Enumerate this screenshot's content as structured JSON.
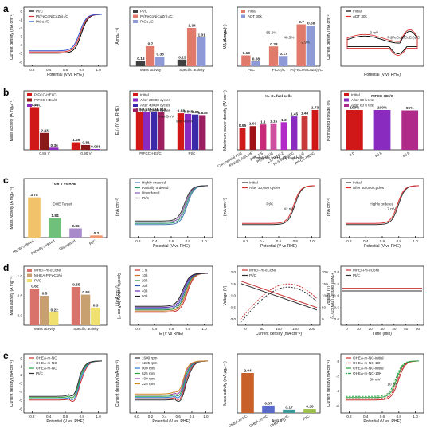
{
  "row_labels": [
    "a",
    "b",
    "c",
    "d",
    "e"
  ],
  "chart_data": [
    {
      "id": "a1",
      "row": "a",
      "type": "line",
      "xlabel": "Potential (V vs RHE)",
      "ylabel": "Current density (mA cm⁻²)",
      "xticks": [
        "0.2",
        "0.4",
        "0.6",
        "0.8",
        "1.0"
      ],
      "yticks": [
        "-6",
        "-5",
        "-4",
        "-3",
        "-2",
        "-1",
        "0"
      ],
      "series": [
        {
          "name": "Pt/C",
          "color": "#000000",
          "y_plateau": -5.4,
          "half_wave": 0.86
        },
        {
          "name": "Pt(FeCoNiCuZn)₃/C",
          "color": "#d93030",
          "y_plateau": -5.7,
          "half_wave": 0.9
        },
        {
          "name": "PtCu₃/C",
          "color": "#3050d0",
          "y_plateau": -5.5,
          "half_wave": 0.88
        }
      ]
    },
    {
      "id": "a2",
      "row": "a",
      "type": "bar",
      "categories": [
        "Mass activity",
        "Specific activity"
      ],
      "ylabel_left": "(A mgₚₜ⁻¹)",
      "ylabel_right": "(mA cm⁻²)",
      "series": [
        {
          "name": "Pt/C",
          "color": "#404040",
          "values": [
            0.18,
            0.23
          ]
        },
        {
          "name": "Pt(FeCoNiCuZn)₃/C",
          "color": "#e07a6a",
          "values": [
            0.7,
            1.34
          ]
        },
        {
          "name": "PtCu₃/C",
          "color": "#8e9ad8",
          "values": [
            0.33,
            1.01
          ]
        }
      ],
      "ylim_left": [
        0,
        1.0
      ],
      "ylim_right": [
        0,
        1.5
      ]
    },
    {
      "id": "a3",
      "row": "a",
      "type": "bar",
      "categories": [
        "Pt/C",
        "PtCu₃/C",
        "Pt(FeCoNiCuZn)₃/C"
      ],
      "ylabel": "MA (A mgₚₜ⁻¹)",
      "annotations": [
        "55.6%",
        "48.5%",
        "2.9%"
      ],
      "series": [
        {
          "name": "Initial",
          "color": "#e07a6a",
          "values": [
            0.18,
            0.33,
            0.7
          ]
        },
        {
          "name": "ADT 30k",
          "color": "#8e9ad8",
          "values": [
            0.08,
            0.17,
            0.68
          ]
        }
      ],
      "ylim": [
        0,
        0.8
      ]
    },
    {
      "id": "a4",
      "row": "a",
      "type": "line",
      "xlabel": "Potential (V vs RHE)",
      "ylabel": "Current density (mA cm⁻²)",
      "annotations": [
        "3 mV",
        "Pt(FeCoNiCuZn)₃/C"
      ],
      "series": [
        {
          "name": "Initial",
          "color": "#000000"
        },
        {
          "name": "ADT 30k",
          "color": "#d93030"
        }
      ]
    },
    {
      "id": "b1",
      "row": "b",
      "type": "bar",
      "categories": [
        "0.85 V",
        "0.90 V"
      ],
      "ylabel": "Mass activity (A mgₚₜ⁻¹)",
      "xlabel": "",
      "series": [
        {
          "name": "PtFCC-HEI/C",
          "color": "#d01818",
          "values": [
            7.14,
            1.26
          ]
        },
        {
          "name": "PtFCC-HEA/C",
          "color": "#8a1a1a",
          "values": [
            2.83,
            0.81
          ]
        },
        {
          "name": "Pt/C",
          "color": "#8a2bbf",
          "values": [
            0.36,
            0.098
          ]
        }
      ],
      "ylim": [
        0,
        8
      ]
    },
    {
      "id": "b2",
      "row": "b",
      "type": "bar",
      "categories": [
        "PtFCC-HEI/C",
        "Pt/C"
      ],
      "ylabel": "E₁/₂ (V vs. RHE)",
      "annotations": [
        "loss 5mV",
        "loss 45mV"
      ],
      "series": [
        {
          "name": "Initial",
          "color": "#d01818",
          "values": [
            0.92,
            0.88
          ]
        },
        {
          "name": "After 20000 cycles",
          "color": "#8a2bbf",
          "values": [
            0.918,
            0.865
          ]
        },
        {
          "name": "After 40000 cycles",
          "color": "#3a2aa8",
          "values": [
            0.916,
            0.85
          ]
        },
        {
          "name": "After 60000 cycles",
          "color": "#9b1e5e",
          "values": [
            0.915,
            0.835
          ]
        }
      ]
    },
    {
      "id": "b3",
      "row": "b",
      "type": "bar",
      "title": "H₂-O₂ fuel cells",
      "xlabel": "Catalysts for H₂-O₂ fuel cells",
      "ylabel": "Maximum power density (W cm⁻²)",
      "categories": [
        "Commercial Pt/C",
        "PtNi@C/Ni/CNF",
        "PtNi_NS",
        "Pt₃Ni NC/C",
        "L1₂-PtFF-2",
        "Pt-S-Ni@NPC",
        "Pt₃Co-C",
        "PtFCC-HEI/C"
      ],
      "values": [
        0.95,
        1.03,
        1.1,
        1.15,
        1.2,
        1.45,
        1.48,
        1.73
      ],
      "colors": [
        "#d01818",
        "#a01418",
        "#c82a7a",
        "#d050a0",
        "#b22ac8",
        "#8a2bbf",
        "#c83a3a",
        "#d01818"
      ]
    },
    {
      "id": "b4",
      "row": "b",
      "type": "bar",
      "title": "PtFCC-HEI/C",
      "ylabel": "Normalized Voltage (%)",
      "categories": [
        "0 h",
        "60 h",
        "80 h"
      ],
      "values": [
        100,
        100,
        99
      ],
      "value_labels": [
        "100%",
        "100%",
        "99%"
      ],
      "legend": [
        "Initial",
        "After 60 h test",
        "After 80 h test"
      ],
      "colors": [
        "#d01818",
        "#8a2bbf",
        "#b02a8a"
      ]
    },
    {
      "id": "c1",
      "row": "c",
      "type": "bar",
      "title": "0.9 V vs RHE",
      "ylabel": "Mass Activity (A mgₚₜ⁻¹)",
      "categories": [
        "Highly ordered",
        "Partially ordered",
        "Disordered",
        "Pt/C"
      ],
      "values": [
        3.78,
        1.84,
        0.86,
        0.2
      ],
      "colors": [
        "#f2c26a",
        "#6fc07a",
        "#a88acb",
        "#f09870"
      ],
      "annotations": [
        "DOE Target"
      ],
      "ylim": [
        0,
        4.5
      ]
    },
    {
      "id": "c2",
      "row": "c",
      "type": "line",
      "xlabel": "Potential (V vs RHE)",
      "ylabel": "j (mA cm⁻²)",
      "xticks": [
        "0.2",
        "0.4",
        "0.6",
        "0.8",
        "1.0"
      ],
      "series": [
        {
          "name": "Highly ordered",
          "color": "#4a7ab8"
        },
        {
          "name": "Partially ordered",
          "color": "#2a9a6a"
        },
        {
          "name": "Disordered",
          "color": "#8a5ab0"
        },
        {
          "name": "Pt/C",
          "color": "#333333"
        }
      ]
    },
    {
      "id": "c3",
      "row": "c",
      "type": "line",
      "xlabel": "Potential (V vs RHE)",
      "ylabel": "j (mA cm⁻²)",
      "xticks": [
        "0.2",
        "0.4",
        "0.6",
        "0.8",
        "1.0"
      ],
      "annotations": [
        "Pt/C",
        "42 mV"
      ],
      "series": [
        {
          "name": "Initial",
          "color": "#333333"
        },
        {
          "name": "After 30,000 cycles",
          "color": "#d93030"
        }
      ]
    },
    {
      "id": "c4",
      "row": "c",
      "type": "line",
      "xlabel": "Potential (V vs RHE)",
      "ylabel": "j (mA cm⁻²)",
      "xticks": [
        "0.2",
        "0.4",
        "0.6",
        "0.8",
        "1.0"
      ],
      "annotations": [
        "Highly ordered",
        "7 mV"
      ],
      "series": [
        {
          "name": "Initial",
          "color": "#333333"
        },
        {
          "name": "After 30,000 cycles",
          "color": "#d93030"
        }
      ]
    },
    {
      "id": "d1",
      "row": "d",
      "type": "bar",
      "categories": [
        "Mass activity",
        "Specific activity"
      ],
      "ylabel_left": "Mass activity (A mg⁻¹)",
      "ylabel_right": "Specific activity (mA cm⁻²)",
      "series": [
        {
          "name": "MHEI-PtFeCoNi",
          "color": "#d9726a",
          "values": [
            0.62,
            0.65
          ]
        },
        {
          "name": "MHEA-PtFeCoNi",
          "color": "#c8a070",
          "values": [
            0.5,
            0.52
          ]
        },
        {
          "name": "Pt/C",
          "color": "#f0e070",
          "values": [
            0.22,
            0.3
          ]
        }
      ],
      "yticks_left": [
        "0.0",
        "0.5",
        "1.0"
      ]
    },
    {
      "id": "d2",
      "row": "d",
      "type": "line",
      "xlabel": "E (V vs RHE)",
      "ylabel": "j (mA cm⁻²)",
      "xticks": [
        "0.2",
        "0.4",
        "0.6",
        "0.8",
        "1.0"
      ],
      "series": [
        {
          "name": "1 st",
          "color": "#c83030"
        },
        {
          "name": "10k",
          "color": "#d06a2a"
        },
        {
          "name": "20k",
          "color": "#2a8a3a"
        },
        {
          "name": "30k",
          "color": "#2a5ab0"
        },
        {
          "name": "40k",
          "color": "#6a2ab0"
        },
        {
          "name": "50k",
          "color": "#202020"
        }
      ]
    },
    {
      "id": "d3",
      "row": "d",
      "type": "line",
      "xlabel": "Current density (mA cm⁻²)",
      "ylabel": "Voltage (V)",
      "ylabel_right": "Power density (mW cm⁻²)",
      "xticks": [
        "0",
        "50",
        "100",
        "150",
        "200"
      ],
      "yticks": [
        "0.0",
        "0.5",
        "1.0",
        "1.5",
        "2.0"
      ],
      "yticks_right": [
        "0",
        "50",
        "100",
        "150",
        "200"
      ],
      "series": [
        {
          "name": "MHEI-PtFeCoNi",
          "color": "#c83030"
        },
        {
          "name": "Pt/C",
          "color": "#303030"
        }
      ]
    },
    {
      "id": "d4",
      "row": "d",
      "type": "line",
      "xlabel": "Time (min)",
      "ylabel": "Voltage (V)",
      "xticks": [
        "0",
        "10",
        "20",
        "30",
        "40",
        "50",
        "60"
      ],
      "yticks": [
        "0.0",
        "0.5",
        "1.0",
        "1.5",
        "2.0"
      ],
      "series": [
        {
          "name": "MHEI-PtFeCoNi",
          "color": "#c83030",
          "y_const": 1.38
        },
        {
          "name": "Pt/C",
          "color": "#303030",
          "y_const": 1.28
        }
      ]
    },
    {
      "id": "e1",
      "row": "e",
      "type": "line",
      "xlabel": "Potential (V vs. RHE)",
      "ylabel": "Current density (mA cm⁻²)",
      "xticks": [
        "0.2",
        "0.4",
        "0.6",
        "0.8",
        "1.0"
      ],
      "yticks": [
        "-6",
        "-5",
        "-4",
        "-3",
        "-2",
        "-1",
        "0"
      ],
      "series": [
        {
          "name": "OHEA-m-NC",
          "color": "#c83030"
        },
        {
          "name": "OHEA-m-NC",
          "color": "#2a7ad0"
        },
        {
          "name": "OHEA-m-NC",
          "color": "#2aa040"
        },
        {
          "name": "Pt/C",
          "color": "#303030"
        }
      ],
      "inset": {
        "xlabel": "Samples",
        "values": [
          0.88,
          0.85,
          0.84,
          0.87
        ]
      }
    },
    {
      "id": "e2",
      "row": "e",
      "type": "line",
      "xlabel": "Potential (V vs. RHE)",
      "ylabel": "Current density (mA cm⁻²)",
      "xticks": [
        "0.0",
        "0.2",
        "0.4",
        "0.6",
        "0.8",
        "1.0"
      ],
      "series": [
        {
          "name": "1600 rpm",
          "color": "#303030"
        },
        {
          "name": "1225 rpm",
          "color": "#c83030"
        },
        {
          "name": "900 rpm",
          "color": "#2a7ad0"
        },
        {
          "name": "625 rpm",
          "color": "#2aa040"
        },
        {
          "name": "400 rpm",
          "color": "#a040b0"
        },
        {
          "name": "225 rpm",
          "color": "#d08a20"
        }
      ]
    },
    {
      "id": "e3",
      "row": "e",
      "type": "bar",
      "xlabel": "At 0.9 V",
      "ylabel": "Mass activity (mA μgₚₜ⁻¹)",
      "categories": [
        "OHEA-m-NC",
        "OHEA-m-NC",
        "OHEA-m-NC",
        "Pt/C"
      ],
      "values": [
        2.04,
        0.37,
        0.17,
        0.2
      ],
      "colors": [
        "#c8602a",
        "#5a6ac8",
        "#3a9a9a",
        "#9abf4a"
      ],
      "value_labels": [
        "2.04",
        "0.37",
        "0.17",
        "0.20"
      ]
    },
    {
      "id": "e4",
      "row": "e",
      "type": "line",
      "xlabel": "Potential (V vs. RHE)",
      "ylabel": "Current density (mA cm⁻²)",
      "xticks": [
        "0.2",
        "0.4",
        "0.6",
        "0.8",
        "1.0"
      ],
      "yticks": [
        "-6",
        "-4",
        "-2",
        "0"
      ],
      "annotations": [
        "30 mV",
        "10 mV"
      ],
      "series": [
        {
          "name": "OHEA-m-NC-initial",
          "color": "#c83030"
        },
        {
          "name": "OHEA-m-NC-10K",
          "color": "#c83030",
          "dashed": true
        },
        {
          "name": "OHEA-m-NC-initial",
          "color": "#2aa040"
        },
        {
          "name": "OHEA-m-NC-10K",
          "color": "#2aa040",
          "dashed": true
        }
      ]
    }
  ]
}
